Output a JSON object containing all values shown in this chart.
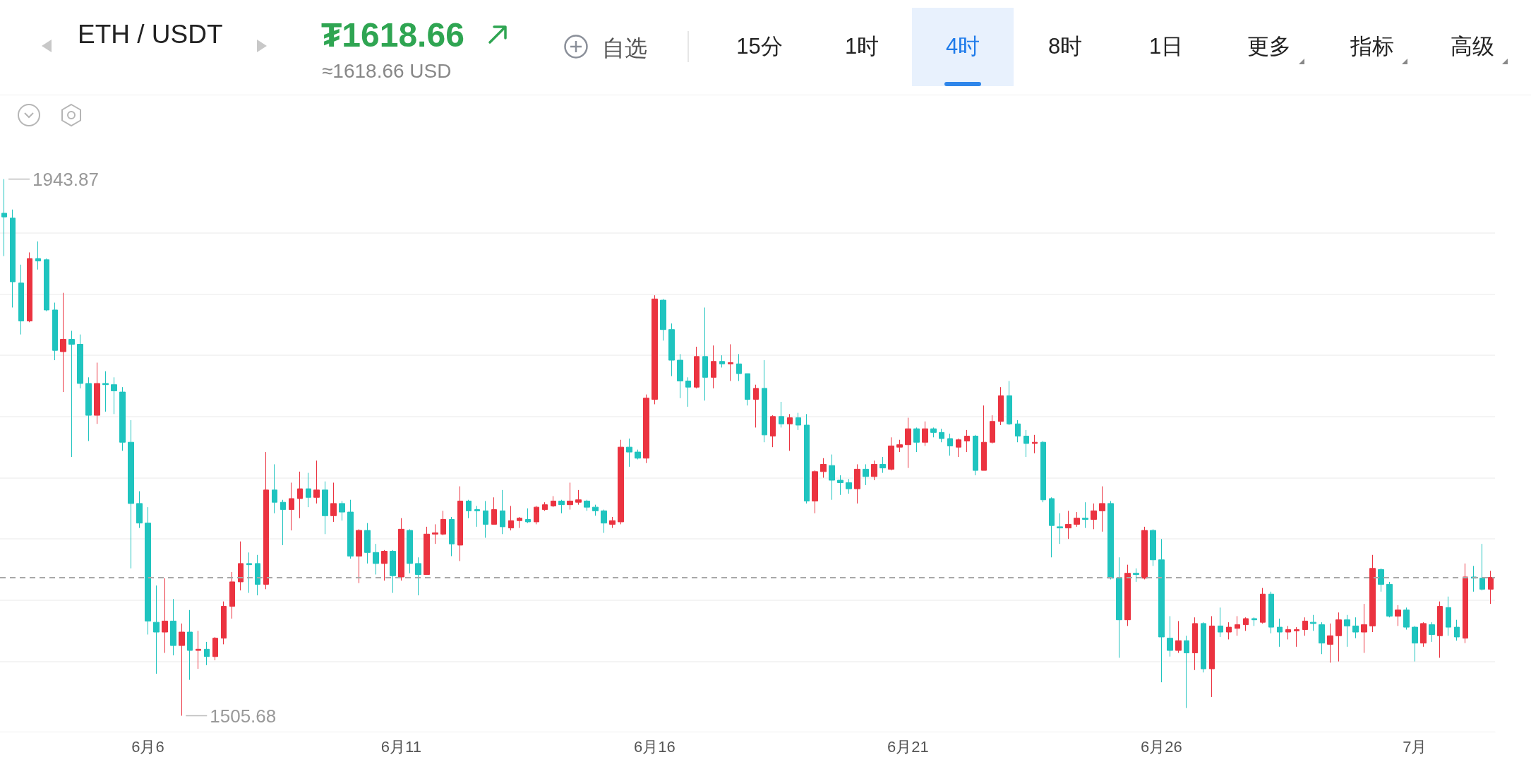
{
  "chart_data": {
    "type": "candlestick",
    "title": "ETH / USDT",
    "subtitle": "₮1618.66",
    "annotations": [
      "≈1618.66 USD",
      "自选",
      "15分",
      "1时",
      "4时",
      "8时",
      "1日",
      "更多",
      "指标",
      "高级",
      "1943.87",
      "1505.68"
    ],
    "categories": [
      null,
      null,
      null,
      null,
      null,
      null,
      null,
      null,
      null,
      null,
      null,
      null,
      null,
      null,
      null,
      null,
      null,
      "6月6",
      null,
      null,
      null,
      null,
      null,
      null,
      null,
      null,
      null,
      null,
      null,
      null,
      null,
      null,
      null,
      null,
      null,
      null,
      null,
      null,
      null,
      null,
      null,
      null,
      null,
      null,
      null,
      null,
      null,
      "6月11",
      null,
      null,
      null,
      null,
      null,
      null,
      null,
      null,
      null,
      null,
      null,
      null,
      null,
      null,
      null,
      null,
      null,
      null,
      null,
      null,
      null,
      null,
      null,
      null,
      null,
      null,
      null,
      null,
      null,
      "6月16",
      null,
      null,
      null,
      null,
      null,
      null,
      null,
      null,
      null,
      null,
      null,
      null,
      null,
      null,
      null,
      null,
      null,
      null,
      null,
      null,
      null,
      null,
      null,
      null,
      null,
      null,
      null,
      null,
      null,
      "6月21",
      null,
      null,
      null,
      null,
      null,
      null,
      null,
      null,
      null,
      null,
      null,
      null,
      null,
      null,
      null,
      null,
      null,
      null,
      null,
      null,
      null,
      null,
      null,
      null,
      null,
      null,
      null,
      null,
      null,
      "6月26",
      null,
      null,
      null,
      null,
      null,
      null,
      null,
      null,
      null,
      null,
      null,
      null,
      null,
      null,
      null,
      null,
      null,
      null,
      null,
      null,
      null,
      null,
      null,
      null,
      null,
      null,
      null,
      null,
      null,
      "7月",
      null,
      null,
      null,
      null,
      null,
      null,
      null,
      null,
      null
    ],
    "ohlc": [
      [
        1916,
        1943.87,
        1881,
        1913
      ],
      [
        1912,
        1919,
        1839,
        1860
      ],
      [
        1859,
        1874,
        1817,
        1828
      ],
      [
        1828,
        1884,
        1827,
        1879
      ],
      [
        1879,
        1893,
        1870,
        1877
      ],
      [
        1878,
        1879,
        1836,
        1837
      ],
      [
        1837,
        1843,
        1796,
        1804
      ],
      [
        1803,
        1851,
        1770,
        1813
      ],
      [
        1813,
        1820,
        1717,
        1809
      ],
      [
        1809,
        1817,
        1773,
        1777
      ],
      [
        1777,
        1782,
        1730,
        1751
      ],
      [
        1751,
        1794,
        1744,
        1777
      ],
      [
        1777,
        1787,
        1754,
        1776
      ],
      [
        1776,
        1782,
        1752,
        1771
      ],
      [
        1770,
        1774,
        1722,
        1729
      ],
      [
        1729,
        1747,
        1626,
        1679
      ],
      [
        1679,
        1689,
        1659,
        1663
      ],
      [
        1663,
        1676,
        1572,
        1583
      ],
      [
        1582,
        1612,
        1540,
        1574
      ],
      [
        1574,
        1618,
        1557,
        1583
      ],
      [
        1583,
        1601,
        1555,
        1563
      ],
      [
        1563,
        1581,
        1505.68,
        1574
      ],
      [
        1574,
        1592,
        1535,
        1559
      ],
      [
        1559,
        1575,
        1544,
        1560
      ],
      [
        1560,
        1566,
        1547,
        1554
      ],
      [
        1554,
        1570,
        1551,
        1569
      ],
      [
        1569,
        1599,
        1564,
        1595
      ],
      [
        1595,
        1623,
        1585,
        1615
      ],
      [
        1615,
        1648,
        1608,
        1630
      ],
      [
        1630,
        1639,
        1606,
        1629
      ],
      [
        1630,
        1637,
        1604,
        1613
      ],
      [
        1613,
        1721,
        1609,
        1690
      ],
      [
        1690,
        1711,
        1671,
        1680
      ],
      [
        1680,
        1682,
        1645,
        1674
      ],
      [
        1674,
        1696,
        1657,
        1683
      ],
      [
        1683,
        1705,
        1667,
        1691
      ],
      [
        1691,
        1704,
        1676,
        1684
      ],
      [
        1684,
        1714,
        1679,
        1690
      ],
      [
        1690,
        1697,
        1654,
        1669
      ],
      [
        1669,
        1696,
        1664,
        1679
      ],
      [
        1679,
        1681,
        1665,
        1672
      ],
      [
        1672,
        1682,
        1634,
        1636
      ],
      [
        1636,
        1658,
        1614,
        1657
      ],
      [
        1657,
        1663,
        1630,
        1639
      ],
      [
        1639,
        1646,
        1621,
        1630
      ],
      [
        1630,
        1641,
        1616,
        1640
      ],
      [
        1640,
        1641,
        1606,
        1620
      ],
      [
        1619,
        1667,
        1616,
        1658
      ],
      [
        1657,
        1658,
        1622,
        1630
      ],
      [
        1630,
        1635,
        1604,
        1621
      ],
      [
        1621,
        1660,
        1621,
        1654
      ],
      [
        1654,
        1662,
        1646,
        1655
      ],
      [
        1654,
        1673,
        1653,
        1666
      ],
      [
        1666,
        1668,
        1636,
        1646
      ],
      [
        1645,
        1693,
        1632,
        1681
      ],
      [
        1681,
        1682,
        1667,
        1673
      ],
      [
        1674,
        1677,
        1660,
        1673
      ],
      [
        1673,
        1681,
        1651,
        1662
      ],
      [
        1662,
        1684,
        1662,
        1674
      ],
      [
        1673,
        1690,
        1654,
        1660
      ],
      [
        1659,
        1677,
        1657,
        1665
      ],
      [
        1665,
        1668,
        1659,
        1667
      ],
      [
        1666,
        1675,
        1663,
        1664
      ],
      [
        1664,
        1677,
        1662,
        1676
      ],
      [
        1674,
        1680,
        1673,
        1678
      ],
      [
        1677,
        1685,
        1676,
        1681
      ],
      [
        1681,
        1682,
        1671,
        1678
      ],
      [
        1678,
        1696,
        1674,
        1681
      ],
      [
        1680,
        1690,
        1678,
        1682
      ],
      [
        1681,
        1682,
        1673,
        1676
      ],
      [
        1676,
        1678,
        1669,
        1673
      ],
      [
        1673,
        1674,
        1655,
        1663
      ],
      [
        1662,
        1668,
        1659,
        1665
      ],
      [
        1664,
        1731,
        1662,
        1725
      ],
      [
        1725,
        1732,
        1709,
        1721
      ],
      [
        1721,
        1723,
        1715,
        1716
      ],
      [
        1716,
        1768,
        1712,
        1765
      ],
      [
        1764,
        1849,
        1760,
        1846
      ],
      [
        1845,
        1846,
        1812,
        1821
      ],
      [
        1821,
        1826,
        1783,
        1796
      ],
      [
        1796,
        1801,
        1765,
        1779
      ],
      [
        1779,
        1782,
        1758,
        1774
      ],
      [
        1774,
        1807,
        1773,
        1799
      ],
      [
        1799,
        1839,
        1763,
        1782
      ],
      [
        1782,
        1808,
        1773,
        1795
      ],
      [
        1795,
        1800,
        1790,
        1793
      ],
      [
        1793,
        1809,
        1779,
        1794
      ],
      [
        1793,
        1801,
        1779,
        1785
      ],
      [
        1785,
        1785,
        1759,
        1764
      ],
      [
        1764,
        1776,
        1741,
        1773
      ],
      [
        1773,
        1796,
        1729,
        1735
      ],
      [
        1734,
        1751,
        1725,
        1750
      ],
      [
        1750,
        1762,
        1741,
        1744
      ],
      [
        1744,
        1752,
        1722,
        1749
      ],
      [
        1749,
        1753,
        1739,
        1743
      ],
      [
        1743,
        1752,
        1679,
        1681
      ],
      [
        1681,
        1706,
        1671,
        1705
      ],
      [
        1705,
        1716,
        1700,
        1711
      ],
      [
        1710,
        1719,
        1682,
        1698
      ],
      [
        1698,
        1702,
        1686,
        1696
      ],
      [
        1696,
        1699,
        1687,
        1691
      ],
      [
        1691,
        1711,
        1679,
        1707
      ],
      [
        1707,
        1711,
        1694,
        1701
      ],
      [
        1701,
        1714,
        1698,
        1711
      ],
      [
        1711,
        1717,
        1704,
        1708
      ],
      [
        1707,
        1733,
        1706,
        1726
      ],
      [
        1725,
        1731,
        1721,
        1727
      ],
      [
        1727,
        1749,
        1708,
        1740
      ],
      [
        1740,
        1741,
        1721,
        1729
      ],
      [
        1729,
        1746,
        1726,
        1740
      ],
      [
        1740,
        1741,
        1733,
        1737
      ],
      [
        1737,
        1740,
        1729,
        1732
      ],
      [
        1732,
        1736,
        1718,
        1726
      ],
      [
        1725,
        1732,
        1717,
        1731
      ],
      [
        1730,
        1739,
        1721,
        1734
      ],
      [
        1734,
        1735,
        1702,
        1706
      ],
      [
        1706,
        1759,
        1706,
        1729
      ],
      [
        1729,
        1751,
        1728,
        1746
      ],
      [
        1746,
        1774,
        1743,
        1767
      ],
      [
        1767,
        1779,
        1743,
        1744
      ],
      [
        1744,
        1747,
        1729,
        1734
      ],
      [
        1734,
        1739,
        1717,
        1728
      ],
      [
        1728,
        1735,
        1720,
        1729
      ],
      [
        1729,
        1730,
        1680,
        1682
      ],
      [
        1683,
        1684,
        1635,
        1661
      ],
      [
        1660,
        1671,
        1646,
        1659
      ],
      [
        1659,
        1673,
        1650,
        1662
      ],
      [
        1662,
        1672,
        1660,
        1667
      ],
      [
        1667,
        1680,
        1659,
        1666
      ],
      [
        1666,
        1679,
        1658,
        1673
      ],
      [
        1673,
        1693,
        1656,
        1679
      ],
      [
        1679,
        1681,
        1617,
        1618
      ],
      [
        1618,
        1635,
        1553,
        1584
      ],
      [
        1584,
        1629,
        1579,
        1622
      ],
      [
        1622,
        1626,
        1615,
        1621
      ],
      [
        1618,
        1660,
        1617,
        1657
      ],
      [
        1657,
        1658,
        1628,
        1633
      ],
      [
        1633,
        1650,
        1533,
        1570
      ],
      [
        1569,
        1587,
        1554,
        1559
      ],
      [
        1559,
        1583,
        1557,
        1567
      ],
      [
        1567,
        1571,
        1512,
        1557
      ],
      [
        1557,
        1586,
        1543,
        1581
      ],
      [
        1581,
        1582,
        1541,
        1544
      ],
      [
        1544,
        1587,
        1521,
        1579
      ],
      [
        1579,
        1594,
        1570,
        1574
      ],
      [
        1574,
        1582,
        1568,
        1578
      ],
      [
        1577,
        1587,
        1571,
        1580
      ],
      [
        1580,
        1586,
        1575,
        1585
      ],
      [
        1585,
        1586,
        1579,
        1584
      ],
      [
        1582,
        1610,
        1581,
        1605
      ],
      [
        1605,
        1607,
        1573,
        1578
      ],
      [
        1578,
        1585,
        1562,
        1574
      ],
      [
        1574,
        1579,
        1568,
        1576
      ],
      [
        1575,
        1578,
        1562,
        1576
      ],
      [
        1576,
        1586,
        1571,
        1583
      ],
      [
        1582,
        1588,
        1575,
        1581
      ],
      [
        1580,
        1582,
        1556,
        1565
      ],
      [
        1564,
        1581,
        1549,
        1571
      ],
      [
        1571,
        1590,
        1550,
        1584
      ],
      [
        1584,
        1588,
        1562,
        1579
      ],
      [
        1579,
        1586,
        1569,
        1574
      ],
      [
        1574,
        1597,
        1557,
        1580
      ],
      [
        1579,
        1637,
        1574,
        1626
      ],
      [
        1625,
        1626,
        1607,
        1613
      ],
      [
        1613,
        1615,
        1586,
        1587
      ],
      [
        1587,
        1596,
        1579,
        1592
      ],
      [
        1592,
        1594,
        1576,
        1578
      ],
      [
        1578,
        1579,
        1550,
        1565
      ],
      [
        1565,
        1582,
        1562,
        1581
      ],
      [
        1580,
        1582,
        1566,
        1572
      ],
      [
        1571,
        1599,
        1553,
        1595
      ],
      [
        1594,
        1603,
        1571,
        1578
      ],
      [
        1578,
        1584,
        1567,
        1570
      ],
      [
        1569,
        1630,
        1565,
        1619
      ],
      [
        1619,
        1628,
        1607,
        1618
      ],
      [
        1618,
        1646,
        1608,
        1609
      ],
      [
        1609,
        1624,
        1597,
        1618.66
      ]
    ],
    "colors": [
      "#1fc4bf",
      "#1fc4bf",
      "#1fc4bf",
      "#eb3340",
      "#1fc4bf",
      "#1fc4bf",
      "#1fc4bf",
      "#eb3340",
      "#1fc4bf",
      "#1fc4bf",
      "#1fc4bf",
      "#eb3340",
      "#1fc4bf",
      "#1fc4bf",
      "#1fc4bf",
      "#1fc4bf",
      "#1fc4bf",
      "#1fc4bf",
      "#1fc4bf",
      "#eb3340",
      "#1fc4bf",
      "#eb3340",
      "#1fc4bf",
      "#eb3340",
      "#1fc4bf",
      "#eb3340",
      "#eb3340",
      "#eb3340",
      "#eb3340",
      "#1fc4bf",
      "#1fc4bf",
      "#eb3340",
      "#1fc4bf",
      "#1fc4bf",
      "#eb3340",
      "#eb3340",
      "#1fc4bf",
      "#eb3340",
      "#1fc4bf",
      "#eb3340",
      "#1fc4bf",
      "#1fc4bf",
      "#eb3340",
      "#1fc4bf",
      "#1fc4bf",
      "#eb3340",
      "#1fc4bf",
      "#eb3340",
      "#1fc4bf",
      "#1fc4bf",
      "#eb3340",
      "#eb3340",
      "#eb3340",
      "#1fc4bf",
      "#eb3340",
      "#1fc4bf",
      "#1fc4bf",
      "#1fc4bf",
      "#eb3340",
      "#1fc4bf",
      "#eb3340",
      "#eb3340",
      "#1fc4bf",
      "#eb3340",
      "#eb3340",
      "#eb3340",
      "#1fc4bf",
      "#eb3340",
      "#eb3340",
      "#1fc4bf",
      "#1fc4bf",
      "#1fc4bf",
      "#eb3340",
      "#eb3340",
      "#1fc4bf",
      "#1fc4bf",
      "#eb3340",
      "#eb3340",
      "#1fc4bf",
      "#1fc4bf",
      "#1fc4bf",
      "#1fc4bf",
      "#eb3340",
      "#1fc4bf",
      "#eb3340",
      "#1fc4bf",
      "#eb3340",
      "#1fc4bf",
      "#1fc4bf",
      "#eb3340",
      "#1fc4bf",
      "#eb3340",
      "#1fc4bf",
      "#eb3340",
      "#1fc4bf",
      "#1fc4bf",
      "#eb3340",
      "#eb3340",
      "#1fc4bf",
      "#1fc4bf",
      "#1fc4bf",
      "#eb3340",
      "#1fc4bf",
      "#eb3340",
      "#1fc4bf",
      "#eb3340",
      "#eb3340",
      "#eb3340",
      "#1fc4bf",
      "#eb3340",
      "#1fc4bf",
      "#1fc4bf",
      "#1fc4bf",
      "#eb3340",
      "#eb3340",
      "#1fc4bf",
      "#eb3340",
      "#eb3340",
      "#eb3340",
      "#1fc4bf",
      "#1fc4bf",
      "#1fc4bf",
      "#eb3340",
      "#1fc4bf",
      "#1fc4bf",
      "#1fc4bf",
      "#eb3340",
      "#eb3340",
      "#1fc4bf",
      "#eb3340",
      "#eb3340",
      "#1fc4bf",
      "#1fc4bf",
      "#eb3340",
      "#1fc4bf",
      "#eb3340",
      "#1fc4bf",
      "#1fc4bf",
      "#1fc4bf",
      "#eb3340",
      "#1fc4bf",
      "#eb3340",
      "#1fc4bf",
      "#eb3340",
      "#1fc4bf",
      "#eb3340",
      "#eb3340",
      "#eb3340",
      "#1fc4bf",
      "#eb3340",
      "#1fc4bf",
      "#1fc4bf",
      "#eb3340",
      "#eb3340",
      "#eb3340",
      "#1fc4bf",
      "#1fc4bf",
      "#eb3340",
      "#eb3340",
      "#1fc4bf",
      "#1fc4bf",
      "#eb3340",
      "#eb3340",
      "#1fc4bf",
      "#1fc4bf",
      "#eb3340",
      "#1fc4bf",
      "#1fc4bf",
      "#eb3340",
      "#1fc4bf",
      "#eb3340",
      "#1fc4bf",
      "#1fc4bf",
      "#eb3340",
      "#1fc4bf",
      "#1fc4bf",
      "#eb3340"
    ],
    "grid": "y",
    "yticks": [
      {
        "value": 1550,
        "label": null
      },
      {
        "value": 1600,
        "label": null
      },
      {
        "value": 1650,
        "label": null
      },
      {
        "value": 1700,
        "label": null
      },
      {
        "value": 1750,
        "label": null
      },
      {
        "value": 1800,
        "label": null
      },
      {
        "value": 1850,
        "label": null
      },
      {
        "value": 1900,
        "label": null
      }
    ],
    "ref_lines": [
      {
        "axis": "y",
        "value": 1618.66,
        "color": "#a8a8a8",
        "line_style": "dashed"
      }
    ]
  }
}
